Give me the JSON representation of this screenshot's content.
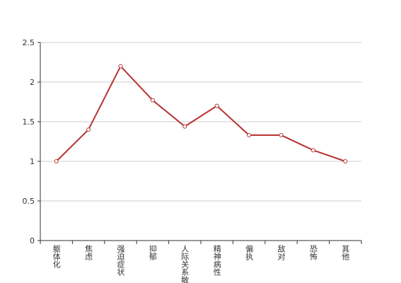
{
  "chart_data": {
    "type": "line",
    "categories": [
      "躯体化",
      "焦虑",
      "强迫症状",
      "抑郁",
      "人际关系敏感",
      "精神病性",
      "偏执",
      "敌对",
      "恐怖",
      "其他"
    ],
    "values": [
      1.0,
      1.4,
      2.2,
      1.77,
      1.44,
      1.7,
      1.33,
      1.33,
      1.14,
      1.0
    ],
    "color": "#b83232",
    "ylim": [
      0,
      2.5
    ],
    "yticks": [
      0,
      0.5,
      1,
      1.5,
      2,
      2.5
    ],
    "grid": true
  }
}
